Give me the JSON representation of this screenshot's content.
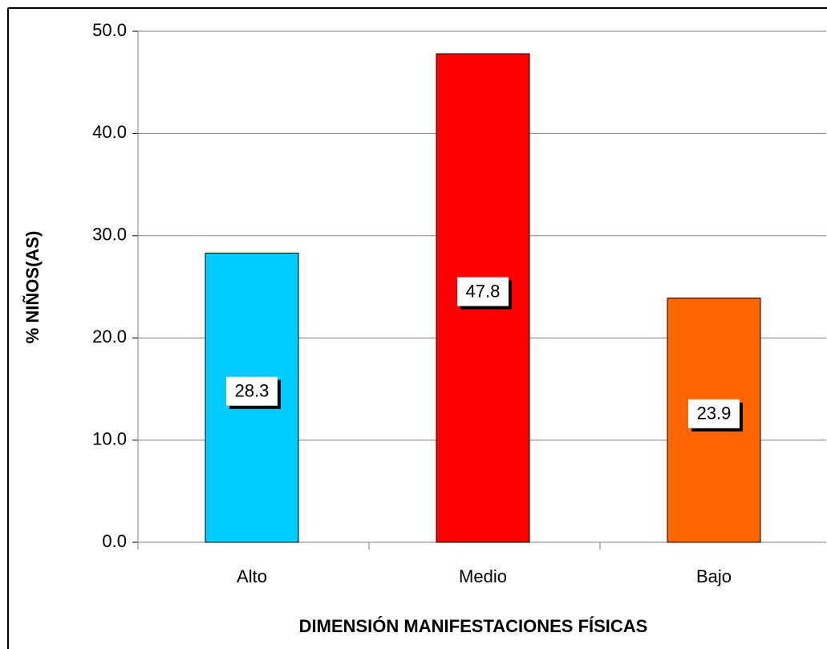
{
  "chart_data": {
    "type": "bar",
    "categories": [
      "Alto",
      "Medio",
      "Bajo"
    ],
    "values": [
      28.3,
      47.8,
      23.9
    ],
    "colors": [
      "#00ccff",
      "#ff0000",
      "#ff6600"
    ],
    "xlabel": "DIMENSIÓN MANIFESTACIONES FÍSICAS",
    "ylabel": "% NIÑOS(AS)",
    "ylim": [
      0,
      50
    ],
    "yticks": [
      {
        "value": 0,
        "label": "0.0"
      },
      {
        "value": 10,
        "label": "10.0"
      },
      {
        "value": 20,
        "label": "20.0"
      },
      {
        "value": 30,
        "label": "30.0"
      },
      {
        "value": 40,
        "label": "40.0"
      },
      {
        "value": 50,
        "label": "50.0"
      }
    ],
    "grid": true
  }
}
